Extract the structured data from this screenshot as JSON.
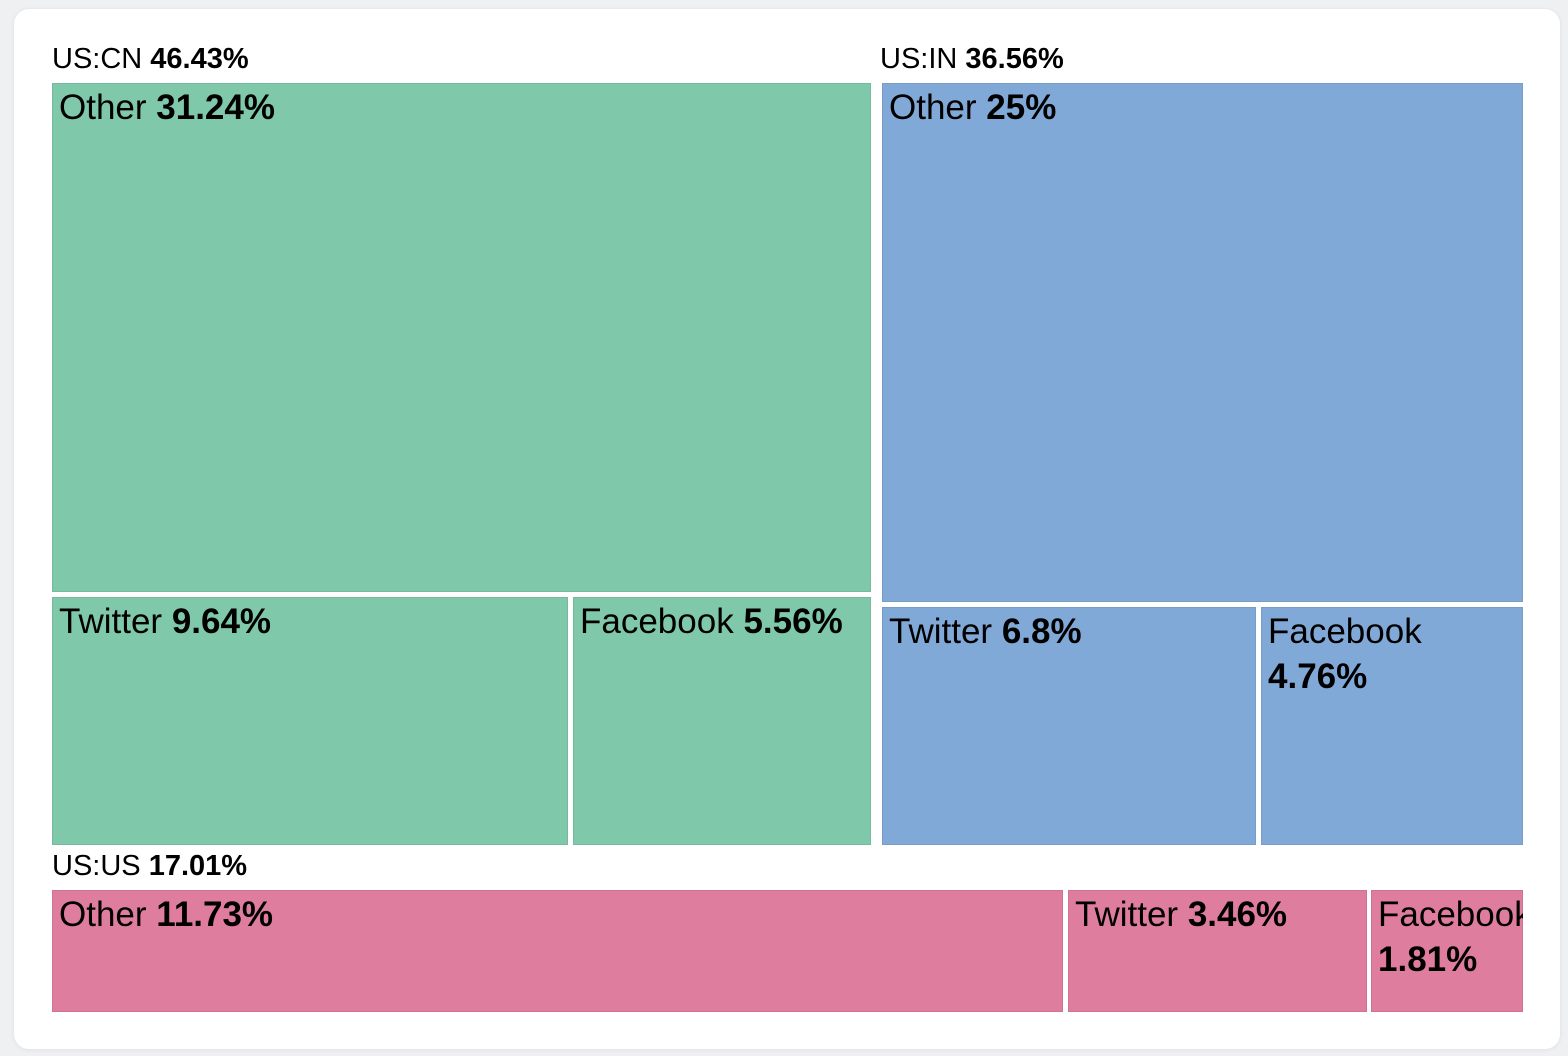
{
  "page": {
    "background_color": "#eff0f2",
    "card_background_color": "#ffffff"
  },
  "chart_data": {
    "type": "treemap",
    "title": "",
    "unit": "%",
    "legend": "none",
    "layout_hint": "three groups tiled left-to-right then bottom row; each group split into Other/Twitter/Facebook; group label above its rectangle",
    "groups": [
      {
        "label": "US:CN",
        "value": 46.43,
        "value_label": "46.43%",
        "color": "#7fc8a9",
        "children": [
          {
            "label": "Other",
            "value": 31.24,
            "value_label": "31.24%"
          },
          {
            "label": "Twitter",
            "value": 9.64,
            "value_label": "9.64%"
          },
          {
            "label": "Facebook",
            "value": 5.56,
            "value_label": "5.56%"
          }
        ]
      },
      {
        "label": "US:IN",
        "value": 36.56,
        "value_label": "36.56%",
        "color": "#81a9d7",
        "children": [
          {
            "label": "Other",
            "value": 25,
            "value_label": "25%"
          },
          {
            "label": "Twitter",
            "value": 6.8,
            "value_label": "6.8%"
          },
          {
            "label": "Facebook",
            "value": 4.76,
            "value_label": "4.76%"
          }
        ]
      },
      {
        "label": "US:US",
        "value": 17.01,
        "value_label": "17.01%",
        "color": "#de7d9d",
        "children": [
          {
            "label": "Other",
            "value": 11.73,
            "value_label": "11.73%"
          },
          {
            "label": "Twitter",
            "value": 3.46,
            "value_label": "3.46%"
          },
          {
            "label": "Facebook",
            "value": 1.81,
            "value_label": "1.81%"
          }
        ]
      }
    ]
  }
}
